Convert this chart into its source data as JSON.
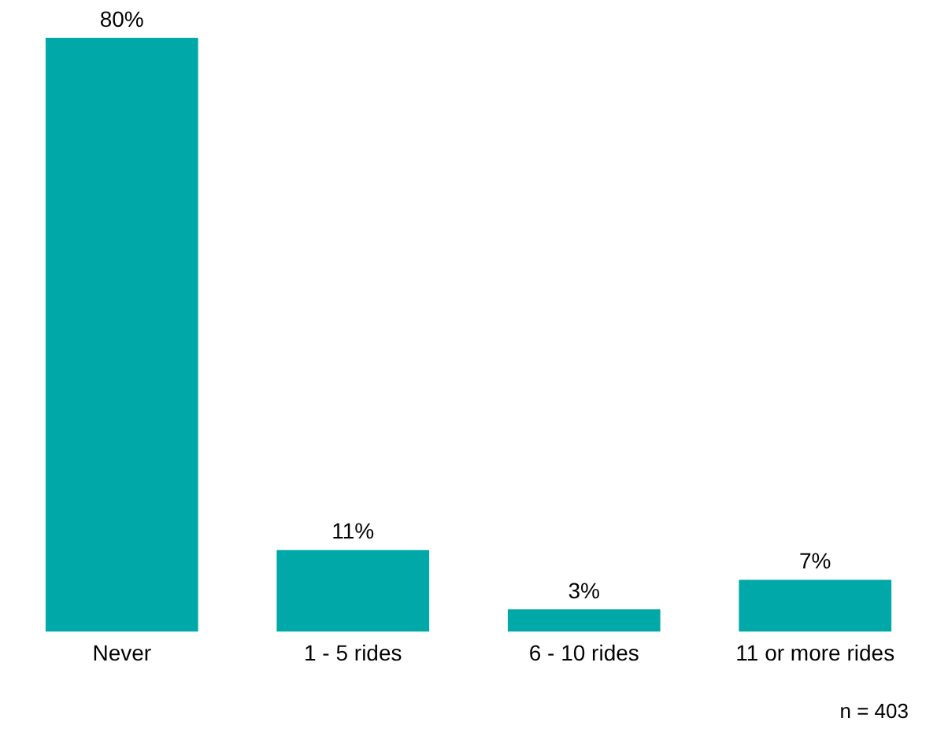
{
  "chart_data": {
    "type": "bar",
    "categories": [
      "Never",
      "1 - 5 rides",
      "6 - 10 rides",
      "11 or more rides"
    ],
    "values": [
      80,
      11,
      3,
      7
    ],
    "value_labels": [
      "80%",
      "11%",
      "3%",
      "7%"
    ],
    "color": "#00a8a8",
    "annotations": [
      "n = 403"
    ],
    "grid": false,
    "legend": false
  }
}
